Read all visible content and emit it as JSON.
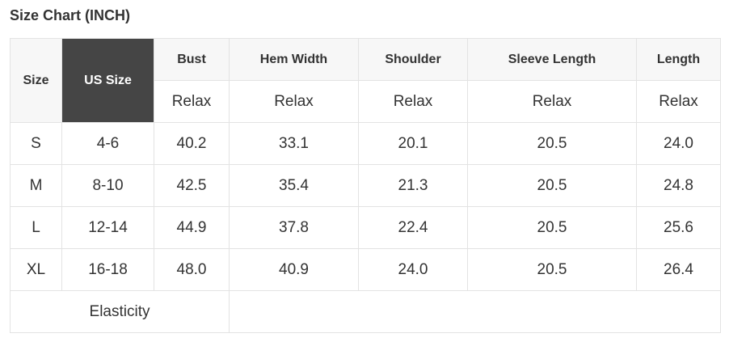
{
  "title": "Size Chart (INCH)",
  "headers": [
    "Size",
    "US Size",
    "Bust",
    "Hem Width",
    "Shoulder",
    "Sleeve Length",
    "Length"
  ],
  "subheaders": [
    "Relax",
    "Relax",
    "Relax",
    "Relax",
    "Relax"
  ],
  "rows": [
    [
      "S",
      "4-6",
      "40.2",
      "33.1",
      "20.1",
      "20.5",
      "24.0"
    ],
    [
      "M",
      "8-10",
      "42.5",
      "35.4",
      "21.3",
      "20.5",
      "24.8"
    ],
    [
      "L",
      "12-14",
      "44.9",
      "37.8",
      "22.4",
      "20.5",
      "25.6"
    ],
    [
      "XL",
      "16-18",
      "48.0",
      "40.9",
      "24.0",
      "20.5",
      "26.4"
    ]
  ],
  "footer": {
    "label": "Elasticity",
    "value": ""
  },
  "colors": {
    "highlight_header": "#454545",
    "header_bg": "#f7f7f7",
    "border": "#e3e3e3"
  }
}
